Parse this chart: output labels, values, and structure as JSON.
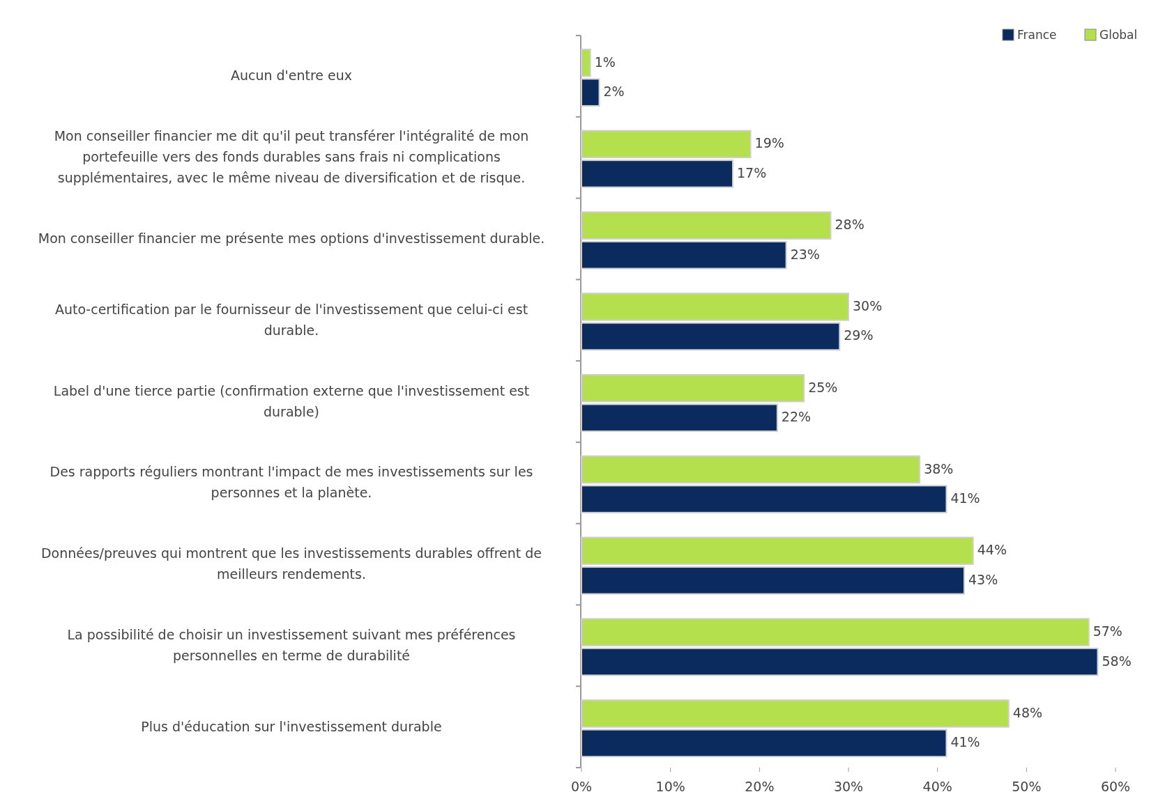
{
  "chart_data": {
    "type": "bar",
    "orientation": "horizontal",
    "categories": [
      "Aucun d'entre eux",
      "Mon conseiller financier me dit qu'il peut transférer l'intégralité de mon portefeuille vers des fonds durables sans frais ni complications supplémentaires, avec le même niveau de diversification et de risque.",
      "Mon conseiller financier me présente mes options d'investissement durable.",
      "Auto-certification par le fournisseur de l'investissement que celui-ci est durable.",
      "Label d'une tierce partie (confirmation externe que l'investissement est durable)",
      "Des rapports réguliers montrant l'impact de mes investissements sur les personnes et la planète.",
      "Données/preuves qui montrent que les investissements durables offrent de meilleurs rendements.",
      "La possibilité de choisir un investissement suivant mes préférences personnelles en terme de durabilité",
      "Plus d'éducation sur l'investissement durable"
    ],
    "series": [
      {
        "name": "Global",
        "color": "#b3e04c",
        "values": [
          1,
          19,
          28,
          30,
          25,
          38,
          44,
          57,
          48
        ],
        "value_labels": [
          "1%",
          "19%",
          "28%",
          "30%",
          "25%",
          "38%",
          "44%",
          "57%",
          "48%"
        ]
      },
      {
        "name": "France",
        "color": "#0b2a5e",
        "values": [
          2,
          17,
          23,
          29,
          22,
          41,
          43,
          58,
          41
        ],
        "value_labels": [
          "2%",
          "17%",
          "23%",
          "29%",
          "22%",
          "41%",
          "43%",
          "58%",
          "41%"
        ]
      }
    ],
    "xlim": [
      0,
      60
    ],
    "xticks": [
      {
        "value": 0,
        "label": "0%"
      },
      {
        "value": 10,
        "label": "10%"
      },
      {
        "value": 20,
        "label": "20%"
      },
      {
        "value": 30,
        "label": "30%"
      },
      {
        "value": 40,
        "label": "40%"
      },
      {
        "value": 50,
        "label": "50%"
      },
      {
        "value": 60,
        "label": "60%"
      }
    ],
    "legend": "top right"
  }
}
